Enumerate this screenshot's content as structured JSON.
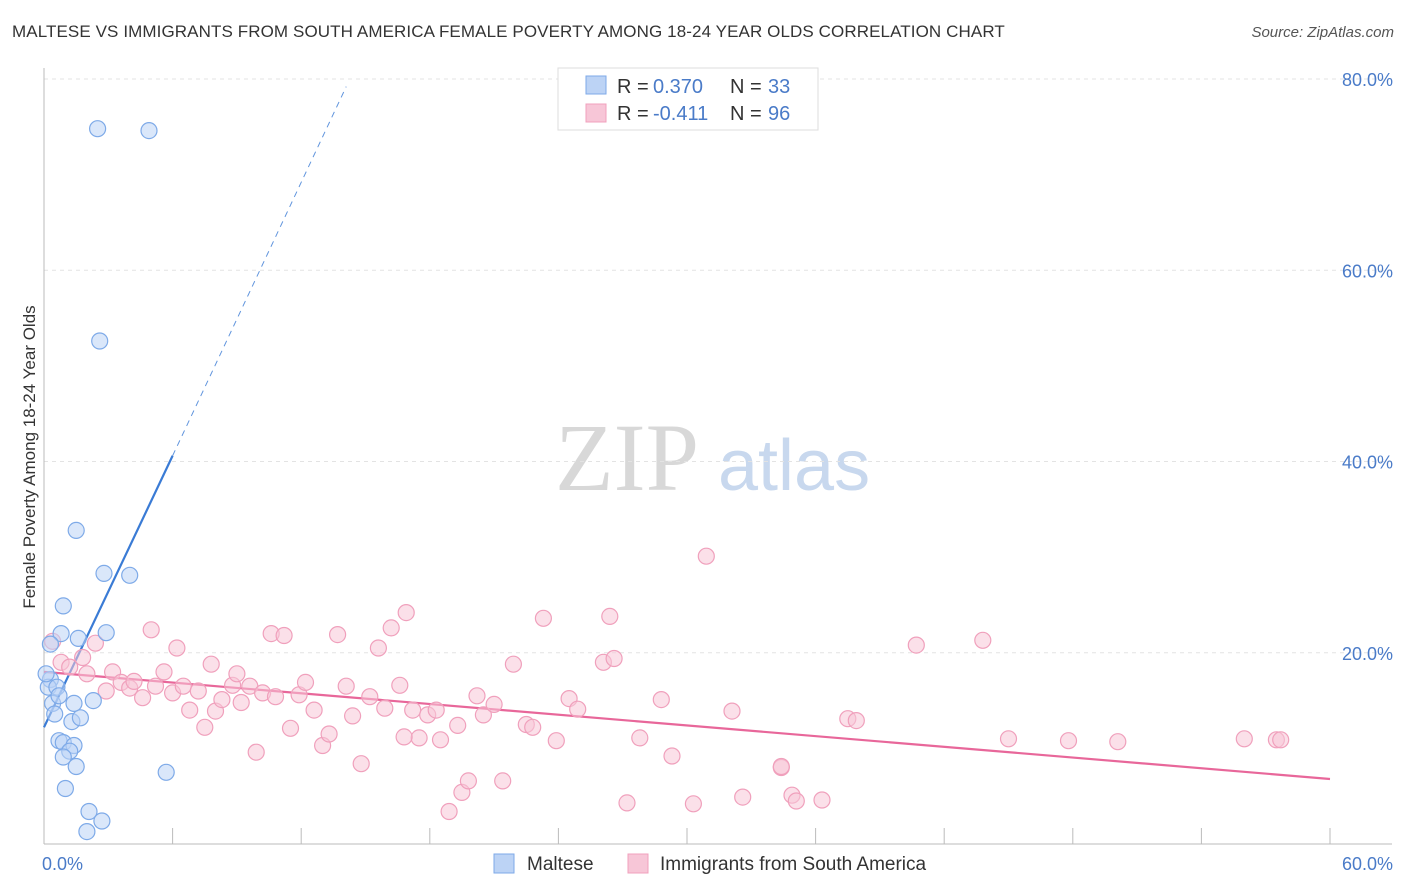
{
  "chart_data": {
    "type": "scatter",
    "title": "MALTESE VS IMMIGRANTS FROM SOUTH AMERICA FEMALE POVERTY AMONG 18-24 YEAR OLDS CORRELATION CHART",
    "source": "Source: ZipAtlas.com",
    "ylabel": "Female Poverty Among 18-24 Year Olds",
    "xlabel": "",
    "xlim": [
      0,
      60
    ],
    "ylim": [
      0,
      80
    ],
    "x_tick_labels": [
      "0.0%",
      "60.0%"
    ],
    "y_tick_values": [
      20,
      40,
      60,
      80
    ],
    "y_tick_labels": [
      "20.0%",
      "40.0%",
      "60.0%",
      "80.0%"
    ],
    "watermark": {
      "zip": "ZIP",
      "atlas": "atlas"
    },
    "legend": [
      {
        "r_label": "R =",
        "r_value": "0.370",
        "n_label": "N =",
        "n_value": "33"
      },
      {
        "r_label": "R =",
        "r_value": "-0.411",
        "n_label": "N =",
        "n_value": "96"
      }
    ],
    "series": [
      {
        "name": "Maltese",
        "color": "#7eaae8",
        "fill": "#bcd3f5",
        "line_color": "#3a7bd5",
        "trend": {
          "x0": 0,
          "y0": 12.2,
          "x1": 6,
          "y1": 40.6,
          "dash_x1": 14.1,
          "dash_y1": 79.2
        },
        "points": [
          [
            2.5,
            74.8
          ],
          [
            4.9,
            74.6
          ],
          [
            2.6,
            52.6
          ],
          [
            1.5,
            32.8
          ],
          [
            2.8,
            28.3
          ],
          [
            4,
            28.1
          ],
          [
            0.9,
            24.9
          ],
          [
            0.8,
            22
          ],
          [
            1.6,
            21.5
          ],
          [
            2.9,
            22.1
          ],
          [
            0.3,
            17.2
          ],
          [
            0.2,
            16.4
          ],
          [
            0.6,
            16.4
          ],
          [
            0.4,
            14.7
          ],
          [
            0.5,
            13.6
          ],
          [
            1.3,
            12.8
          ],
          [
            1.7,
            13.2
          ],
          [
            1.4,
            14.7
          ],
          [
            2.3,
            15
          ],
          [
            0.7,
            10.8
          ],
          [
            0.9,
            10.6
          ],
          [
            1.4,
            10.3
          ],
          [
            1.2,
            9.7
          ],
          [
            0.9,
            9.1
          ],
          [
            1.5,
            8.1
          ],
          [
            5.7,
            7.5
          ],
          [
            1,
            5.8
          ],
          [
            2.1,
            3.4
          ],
          [
            2.7,
            2.4
          ],
          [
            2,
            1.3
          ],
          [
            0.3,
            20.9
          ],
          [
            0.1,
            17.8
          ],
          [
            0.7,
            15.5
          ]
        ]
      },
      {
        "name": "Immigrants from South America",
        "color": "#f0a0bc",
        "fill": "#f7c6d7",
        "line_color": "#e8679a",
        "trend": {
          "x0": 0,
          "y0": 18,
          "x1": 60,
          "y1": 6.8
        },
        "points": [
          [
            0.4,
            21.2
          ],
          [
            0.8,
            19
          ],
          [
            1.2,
            18.5
          ],
          [
            1.8,
            19.5
          ],
          [
            2.4,
            21
          ],
          [
            2,
            17.8
          ],
          [
            2.9,
            16
          ],
          [
            3.2,
            18
          ],
          [
            3.6,
            16.9
          ],
          [
            4,
            16.3
          ],
          [
            4.2,
            17
          ],
          [
            4.6,
            15.3
          ],
          [
            5,
            22.4
          ],
          [
            5.2,
            16.5
          ],
          [
            5.6,
            18
          ],
          [
            6,
            15.8
          ],
          [
            6.2,
            20.5
          ],
          [
            6.5,
            16.5
          ],
          [
            6.8,
            14
          ],
          [
            7.2,
            16
          ],
          [
            7.5,
            12.2
          ],
          [
            7.8,
            18.8
          ],
          [
            8,
            13.9
          ],
          [
            8.3,
            15.1
          ],
          [
            8.8,
            16.6
          ],
          [
            9,
            17.8
          ],
          [
            9.2,
            14.8
          ],
          [
            9.6,
            16.5
          ],
          [
            9.9,
            9.6
          ],
          [
            10.2,
            15.8
          ],
          [
            10.6,
            22
          ],
          [
            10.8,
            15.4
          ],
          [
            11.2,
            21.8
          ],
          [
            11.5,
            12.1
          ],
          [
            11.9,
            15.6
          ],
          [
            12.2,
            16.9
          ],
          [
            12.6,
            14
          ],
          [
            13,
            10.3
          ],
          [
            13.3,
            11.5
          ],
          [
            13.7,
            21.9
          ],
          [
            14.1,
            16.5
          ],
          [
            14.4,
            13.4
          ],
          [
            14.8,
            8.4
          ],
          [
            15.2,
            15.4
          ],
          [
            15.6,
            20.5
          ],
          [
            15.9,
            14.2
          ],
          [
            16.2,
            22.6
          ],
          [
            16.6,
            16.6
          ],
          [
            16.9,
            24.2
          ],
          [
            17.2,
            14
          ],
          [
            17.5,
            11.1
          ],
          [
            17.9,
            13.5
          ],
          [
            18.3,
            14
          ],
          [
            18.5,
            10.9
          ],
          [
            18.9,
            3.4
          ],
          [
            19.3,
            12.4
          ],
          [
            19.5,
            5.4
          ],
          [
            19.8,
            6.6
          ],
          [
            20.2,
            15.5
          ],
          [
            20.5,
            13.5
          ],
          [
            21,
            14.6
          ],
          [
            21.4,
            6.6
          ],
          [
            21.9,
            18.8
          ],
          [
            22.5,
            12.5
          ],
          [
            22.8,
            12.2
          ],
          [
            23.3,
            23.6
          ],
          [
            23.9,
            10.8
          ],
          [
            24.5,
            15.2
          ],
          [
            24.9,
            14.1
          ],
          [
            26.1,
            19
          ],
          [
            26.4,
            23.8
          ],
          [
            26.6,
            19.4
          ],
          [
            27.2,
            4.3
          ],
          [
            27.8,
            11.1
          ],
          [
            28.8,
            15.1
          ],
          [
            29.3,
            9.2
          ],
          [
            30.3,
            4.2
          ],
          [
            30.9,
            30.1
          ],
          [
            32.1,
            13.9
          ],
          [
            32.6,
            4.9
          ],
          [
            34.4,
            8
          ],
          [
            34.9,
            5.1
          ],
          [
            35.1,
            4.5
          ],
          [
            36.3,
            4.6
          ],
          [
            37.5,
            13.1
          ],
          [
            40.7,
            20.8
          ],
          [
            43.8,
            21.3
          ],
          [
            45,
            11
          ],
          [
            47.8,
            10.8
          ],
          [
            50.1,
            10.7
          ],
          [
            56,
            11
          ],
          [
            57.5,
            10.9
          ],
          [
            57.7,
            10.9
          ],
          [
            34.4,
            8.1
          ],
          [
            37.9,
            12.9
          ],
          [
            16.8,
            11.2
          ]
        ]
      }
    ]
  }
}
